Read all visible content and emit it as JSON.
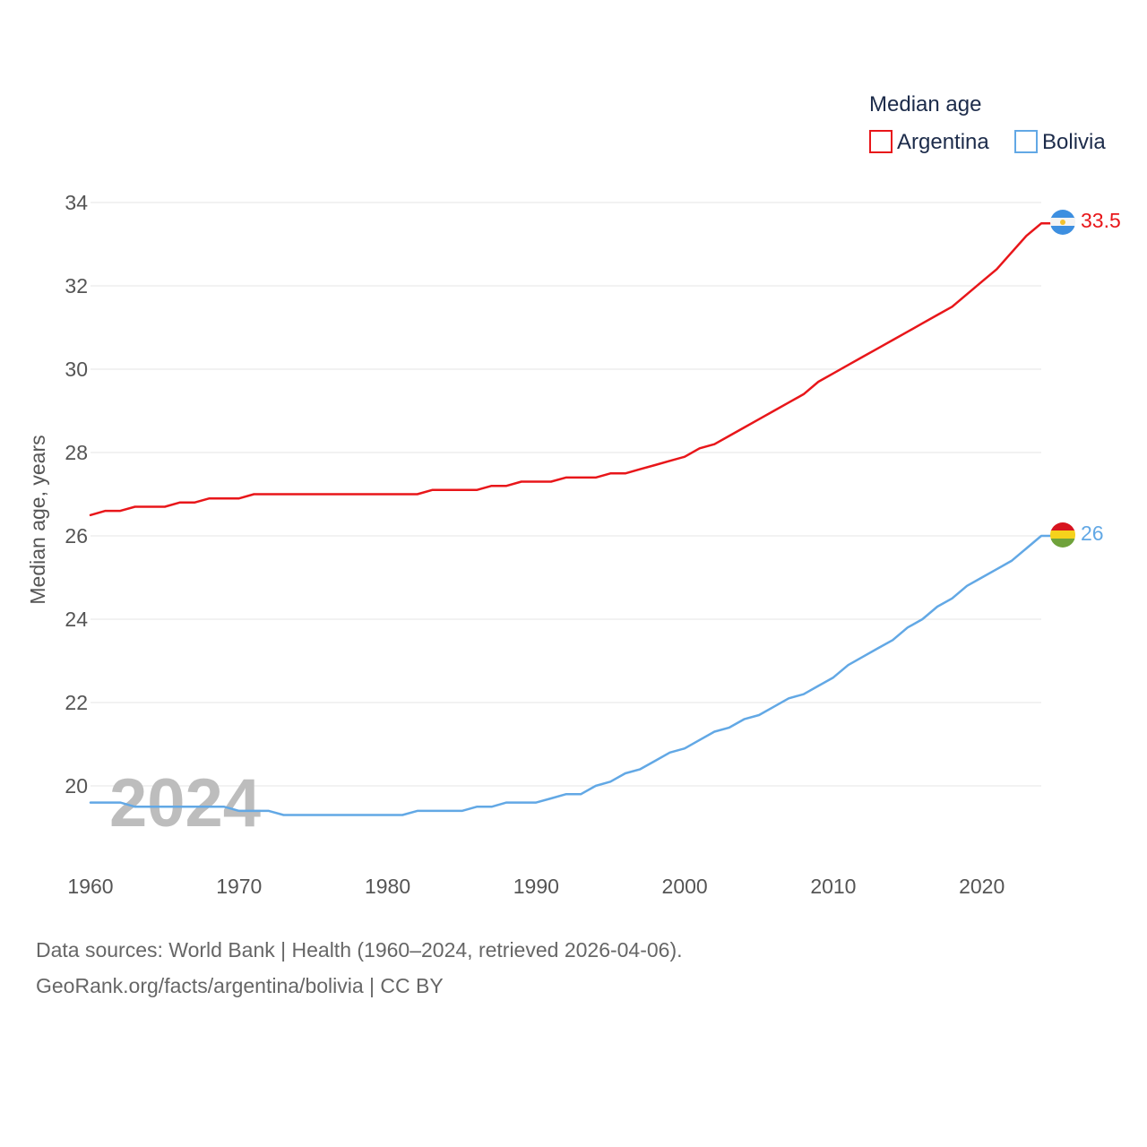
{
  "colors": {
    "argentina": "#e8161a",
    "bolivia": "#62a8e5",
    "grid": "#e6e6e6",
    "text": "#555555",
    "legend_text": "#1c2b4a"
  },
  "year_label": "2024",
  "source": {
    "line1": "Data sources: World Bank | Health (1960–2024, retrieved 2026-04-06).",
    "line2": "GeoRank.org/facts/argentina/bolivia | CC BY"
  },
  "chart_data": {
    "type": "line",
    "title": "",
    "xlabel": "",
    "ylabel": "Median age, years",
    "xlim": [
      1960,
      2024
    ],
    "ylim": [
      18,
      34.5
    ],
    "grid": true,
    "x_ticks": [
      1960,
      1970,
      1980,
      1990,
      2000,
      2010,
      2020
    ],
    "y_ticks": [
      20,
      22,
      24,
      26,
      28,
      30,
      32,
      34
    ],
    "legend": {
      "title": "Median age",
      "position": "top-right",
      "entries": [
        "Argentina",
        "Bolivia"
      ]
    },
    "x": [
      1960,
      1961,
      1962,
      1963,
      1964,
      1965,
      1966,
      1967,
      1968,
      1969,
      1970,
      1971,
      1972,
      1973,
      1974,
      1975,
      1976,
      1977,
      1978,
      1979,
      1980,
      1981,
      1982,
      1983,
      1984,
      1985,
      1986,
      1987,
      1988,
      1989,
      1990,
      1991,
      1992,
      1993,
      1994,
      1995,
      1996,
      1997,
      1998,
      1999,
      2000,
      2001,
      2002,
      2003,
      2004,
      2005,
      2006,
      2007,
      2008,
      2009,
      2010,
      2011,
      2012,
      2013,
      2014,
      2015,
      2016,
      2017,
      2018,
      2019,
      2020,
      2021,
      2022,
      2023,
      2024
    ],
    "series": [
      {
        "name": "Argentina",
        "end_label": "33.5",
        "values": [
          26.5,
          26.6,
          26.6,
          26.7,
          26.7,
          26.7,
          26.8,
          26.8,
          26.9,
          26.9,
          26.9,
          27.0,
          27.0,
          27.0,
          27.0,
          27.0,
          27.0,
          27.0,
          27.0,
          27.0,
          27.0,
          27.0,
          27.0,
          27.1,
          27.1,
          27.1,
          27.1,
          27.2,
          27.2,
          27.3,
          27.3,
          27.3,
          27.4,
          27.4,
          27.4,
          27.5,
          27.5,
          27.6,
          27.7,
          27.8,
          27.9,
          28.1,
          28.2,
          28.4,
          28.6,
          28.8,
          29.0,
          29.2,
          29.4,
          29.7,
          29.9,
          30.1,
          30.3,
          30.5,
          30.7,
          30.9,
          31.1,
          31.3,
          31.5,
          31.8,
          32.1,
          32.4,
          32.8,
          33.2,
          33.5
        ]
      },
      {
        "name": "Bolivia",
        "end_label": "26",
        "values": [
          19.6,
          19.6,
          19.6,
          19.5,
          19.5,
          19.5,
          19.5,
          19.5,
          19.5,
          19.5,
          19.4,
          19.4,
          19.4,
          19.3,
          19.3,
          19.3,
          19.3,
          19.3,
          19.3,
          19.3,
          19.3,
          19.3,
          19.4,
          19.4,
          19.4,
          19.4,
          19.5,
          19.5,
          19.6,
          19.6,
          19.6,
          19.7,
          19.8,
          19.8,
          20.0,
          20.1,
          20.3,
          20.4,
          20.6,
          20.8,
          20.9,
          21.1,
          21.3,
          21.4,
          21.6,
          21.7,
          21.9,
          22.1,
          22.2,
          22.4,
          22.6,
          22.9,
          23.1,
          23.3,
          23.5,
          23.8,
          24.0,
          24.3,
          24.5,
          24.8,
          25.0,
          25.2,
          25.4,
          25.7,
          26.0
        ]
      }
    ]
  }
}
